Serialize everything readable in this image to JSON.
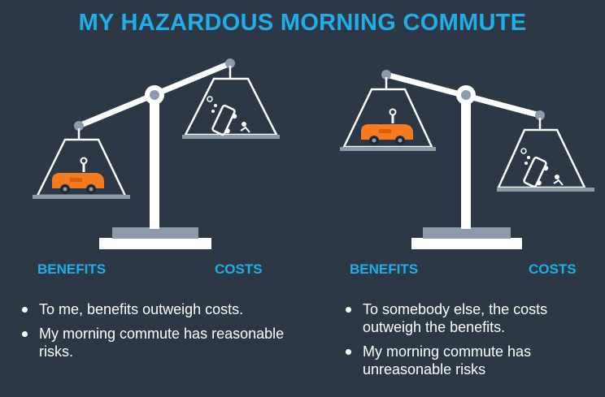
{
  "title": "MY HAZARDOUS MORNING COMMUTE",
  "left_panel": {
    "benefits_label": "BENEFITS",
    "costs_label": "COSTS",
    "bullets": [
      "To me, benefits outweigh costs.",
      "My morning commute has reasonable risks."
    ]
  },
  "right_panel": {
    "benefits_label": "BENEFITS",
    "costs_label": "COSTS",
    "bullets": [
      "To somebody else, the costs outweigh the benefits.",
      "My morning commute has unreasonable risks"
    ]
  },
  "colors": {
    "background": "#2c3846",
    "accent": "#1faee8",
    "scale_white": "#ffffff",
    "pivot_gray": "#8c9aaa",
    "car_orange": "#f47b20"
  }
}
